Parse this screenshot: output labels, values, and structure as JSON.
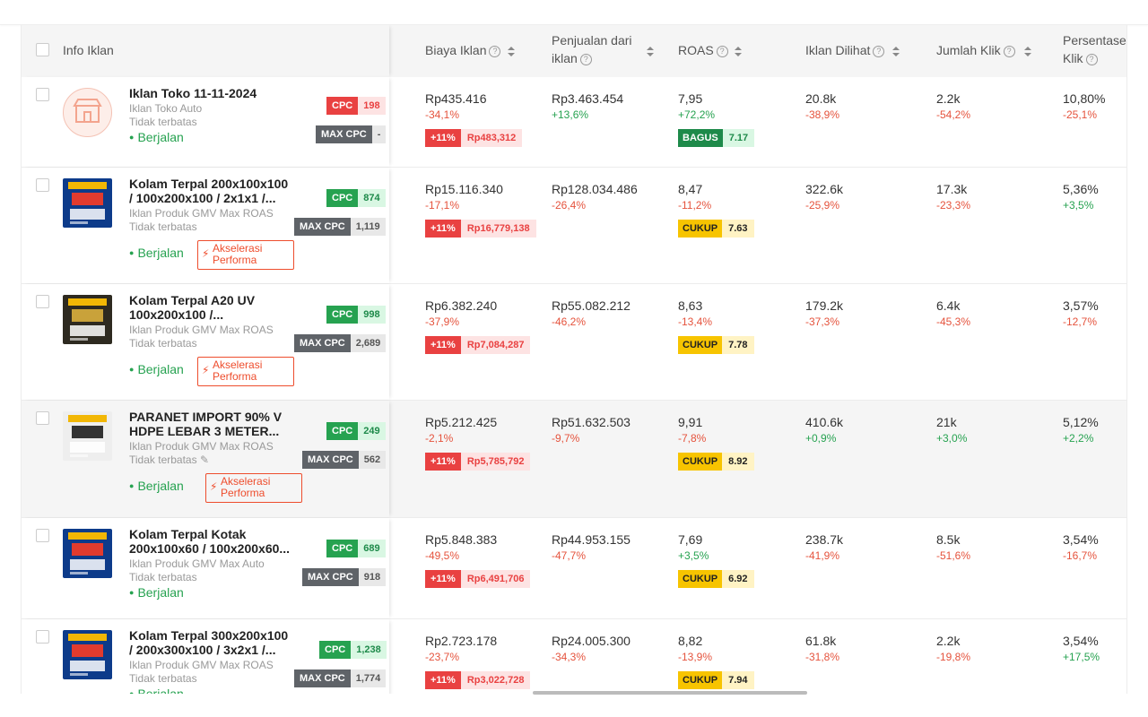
{
  "header": {
    "info": "Info Iklan",
    "biaya": "Biaya Iklan",
    "penjualan_l1": "Penjualan dari",
    "penjualan_l2": "iklan",
    "roas": "ROAS",
    "dilihat": "Iklan Dilihat",
    "klik": "Jumlah Klik",
    "persen_l1": "Persentase",
    "persen_l2": "Klik",
    "help_glyph": "?"
  },
  "rows": [
    {
      "title_l1": "Iklan Toko 11-11-2024",
      "title_l2": "",
      "type": "Iklan Toko Auto",
      "limit": "Tidak terbatas",
      "status": "Berjalan",
      "akselerasi_l1": "",
      "akselerasi_l2": "",
      "cpc_label": "CPC",
      "cpc_value": "198",
      "cpc_color": "red",
      "maxcpc_label": "MAX CPC",
      "maxcpc_value": "-",
      "biaya": "Rp435.416",
      "biaya_pct": "-34,1%",
      "bid_a": "+11%",
      "bid_b": "Rp483,312",
      "penjualan": "Rp3.463.454",
      "penjualan_pct": "+13,6%",
      "roas": "7,95",
      "roas_pct": "+72,2%",
      "roas_label": "BAGUS",
      "roas_score": "7.17",
      "roas_level": "good",
      "dilihat": "20.8k",
      "dilihat_pct": "-38,9%",
      "klik": "2.2k",
      "klik_pct": "-54,2%",
      "persen": "10,80%",
      "persen_pct": "-25,1%"
    },
    {
      "title_l1": "Kolam Terpal 200x100x100",
      "title_l2": "/ 100x200x100 / 2x1x1 /...",
      "type": "Iklan Produk GMV Max ROAS",
      "limit": "Tidak terbatas",
      "status": "Berjalan",
      "akselerasi_l1": "Akselerasi",
      "akselerasi_l2": "Performa",
      "cpc_label": "CPC",
      "cpc_value": "874",
      "cpc_color": "green",
      "maxcpc_label": "MAX CPC",
      "maxcpc_value": "1,119",
      "biaya": "Rp15.116.340",
      "biaya_pct": "-17,1%",
      "bid_a": "+11%",
      "bid_b": "Rp16,779,138",
      "penjualan": "Rp128.034.486",
      "penjualan_pct": "-26,4%",
      "roas": "8,47",
      "roas_pct": "-11,2%",
      "roas_label": "CUKUP",
      "roas_score": "7.63",
      "roas_level": "ok",
      "dilihat": "322.6k",
      "dilihat_pct": "-25,9%",
      "klik": "17.3k",
      "klik_pct": "-23,3%",
      "persen": "5,36%",
      "persen_pct": "+3,5%"
    },
    {
      "title_l1": "Kolam Terpal A20 UV",
      "title_l2": "100x200x100 /...",
      "type": "Iklan Produk GMV Max ROAS",
      "limit": "Tidak terbatas",
      "status": "Berjalan",
      "akselerasi_l1": "Akselerasi",
      "akselerasi_l2": "Performa",
      "cpc_label": "CPC",
      "cpc_value": "998",
      "cpc_color": "green",
      "maxcpc_label": "MAX CPC",
      "maxcpc_value": "2,689",
      "biaya": "Rp6.382.240",
      "biaya_pct": "-37,9%",
      "bid_a": "+11%",
      "bid_b": "Rp7,084,287",
      "penjualan": "Rp55.082.212",
      "penjualan_pct": "-46,2%",
      "roas": "8,63",
      "roas_pct": "-13,4%",
      "roas_label": "CUKUP",
      "roas_score": "7.78",
      "roas_level": "ok",
      "dilihat": "179.2k",
      "dilihat_pct": "-37,3%",
      "klik": "6.4k",
      "klik_pct": "-45,3%",
      "persen": "3,57%",
      "persen_pct": "-12,7%"
    },
    {
      "title_l1": "PARANET IMPORT 90% V",
      "title_l2": "HDPE LEBAR 3 METER...",
      "type": "Iklan Produk GMV Max ROAS",
      "limit": "Tidak terbatas",
      "status": "Berjalan",
      "akselerasi_l1": "Akselerasi",
      "akselerasi_l2": "Performa",
      "cpc_label": "CPC",
      "cpc_value": "249",
      "cpc_color": "green",
      "maxcpc_label": "MAX CPC",
      "maxcpc_value": "562",
      "biaya": "Rp5.212.425",
      "biaya_pct": "-2,1%",
      "bid_a": "+11%",
      "bid_b": "Rp5,785,792",
      "penjualan": "Rp51.632.503",
      "penjualan_pct": "-9,7%",
      "roas": "9,91",
      "roas_pct": "-7,8%",
      "roas_label": "CUKUP",
      "roas_score": "8.92",
      "roas_level": "ok",
      "dilihat": "410.6k",
      "dilihat_pct": "+0,9%",
      "klik": "21k",
      "klik_pct": "+3,0%",
      "persen": "5,12%",
      "persen_pct": "+2,2%"
    },
    {
      "title_l1": "Kolam Terpal Kotak",
      "title_l2": "200x100x60 / 100x200x60...",
      "type": "Iklan Produk GMV Max Auto",
      "limit": "Tidak terbatas",
      "status": "Berjalan",
      "akselerasi_l1": "",
      "akselerasi_l2": "",
      "cpc_label": "CPC",
      "cpc_value": "689",
      "cpc_color": "green",
      "maxcpc_label": "MAX CPC",
      "maxcpc_value": "918",
      "biaya": "Rp5.848.383",
      "biaya_pct": "-49,5%",
      "bid_a": "+11%",
      "bid_b": "Rp6,491,706",
      "penjualan": "Rp44.953.155",
      "penjualan_pct": "-47,7%",
      "roas": "7,69",
      "roas_pct": "+3,5%",
      "roas_label": "CUKUP",
      "roas_score": "6.92",
      "roas_level": "ok",
      "dilihat": "238.7k",
      "dilihat_pct": "-41,9%",
      "klik": "8.5k",
      "klik_pct": "-51,6%",
      "persen": "3,54%",
      "persen_pct": "-16,7%"
    },
    {
      "title_l1": "Kolam Terpal 300x200x100",
      "title_l2": "/ 200x300x100 / 3x2x1 /...",
      "type": "Iklan Produk GMV Max ROAS",
      "limit": "Tidak terbatas",
      "status": "Berjalan",
      "akselerasi_l1": "",
      "akselerasi_l2": "",
      "cpc_label": "CPC",
      "cpc_value": "1,238",
      "cpc_color": "green",
      "maxcpc_label": "MAX CPC",
      "maxcpc_value": "1,774",
      "biaya": "Rp2.723.178",
      "biaya_pct": "-23,7%",
      "bid_a": "+11%",
      "bid_b": "Rp3,022,728",
      "penjualan": "Rp24.005.300",
      "penjualan_pct": "-34,3%",
      "roas": "8,82",
      "roas_pct": "-13,9%",
      "roas_label": "CUKUP",
      "roas_score": "7.94",
      "roas_level": "ok",
      "dilihat": "61.8k",
      "dilihat_pct": "-31,8%",
      "klik": "2.2k",
      "klik_pct": "-19,8%",
      "persen": "3,54%",
      "persen_pct": "+17,5%"
    }
  ],
  "colors": {
    "green": "#26a250",
    "red": "#e94141",
    "maxcpc": "#5f6368",
    "good_bg": "#1e8a4a",
    "good_light": "#d9f7e3",
    "ok_bg": "#f7c400",
    "ok_light": "#fff3c4"
  },
  "icons": {
    "pencil": "✎",
    "bolt": "⚡"
  }
}
